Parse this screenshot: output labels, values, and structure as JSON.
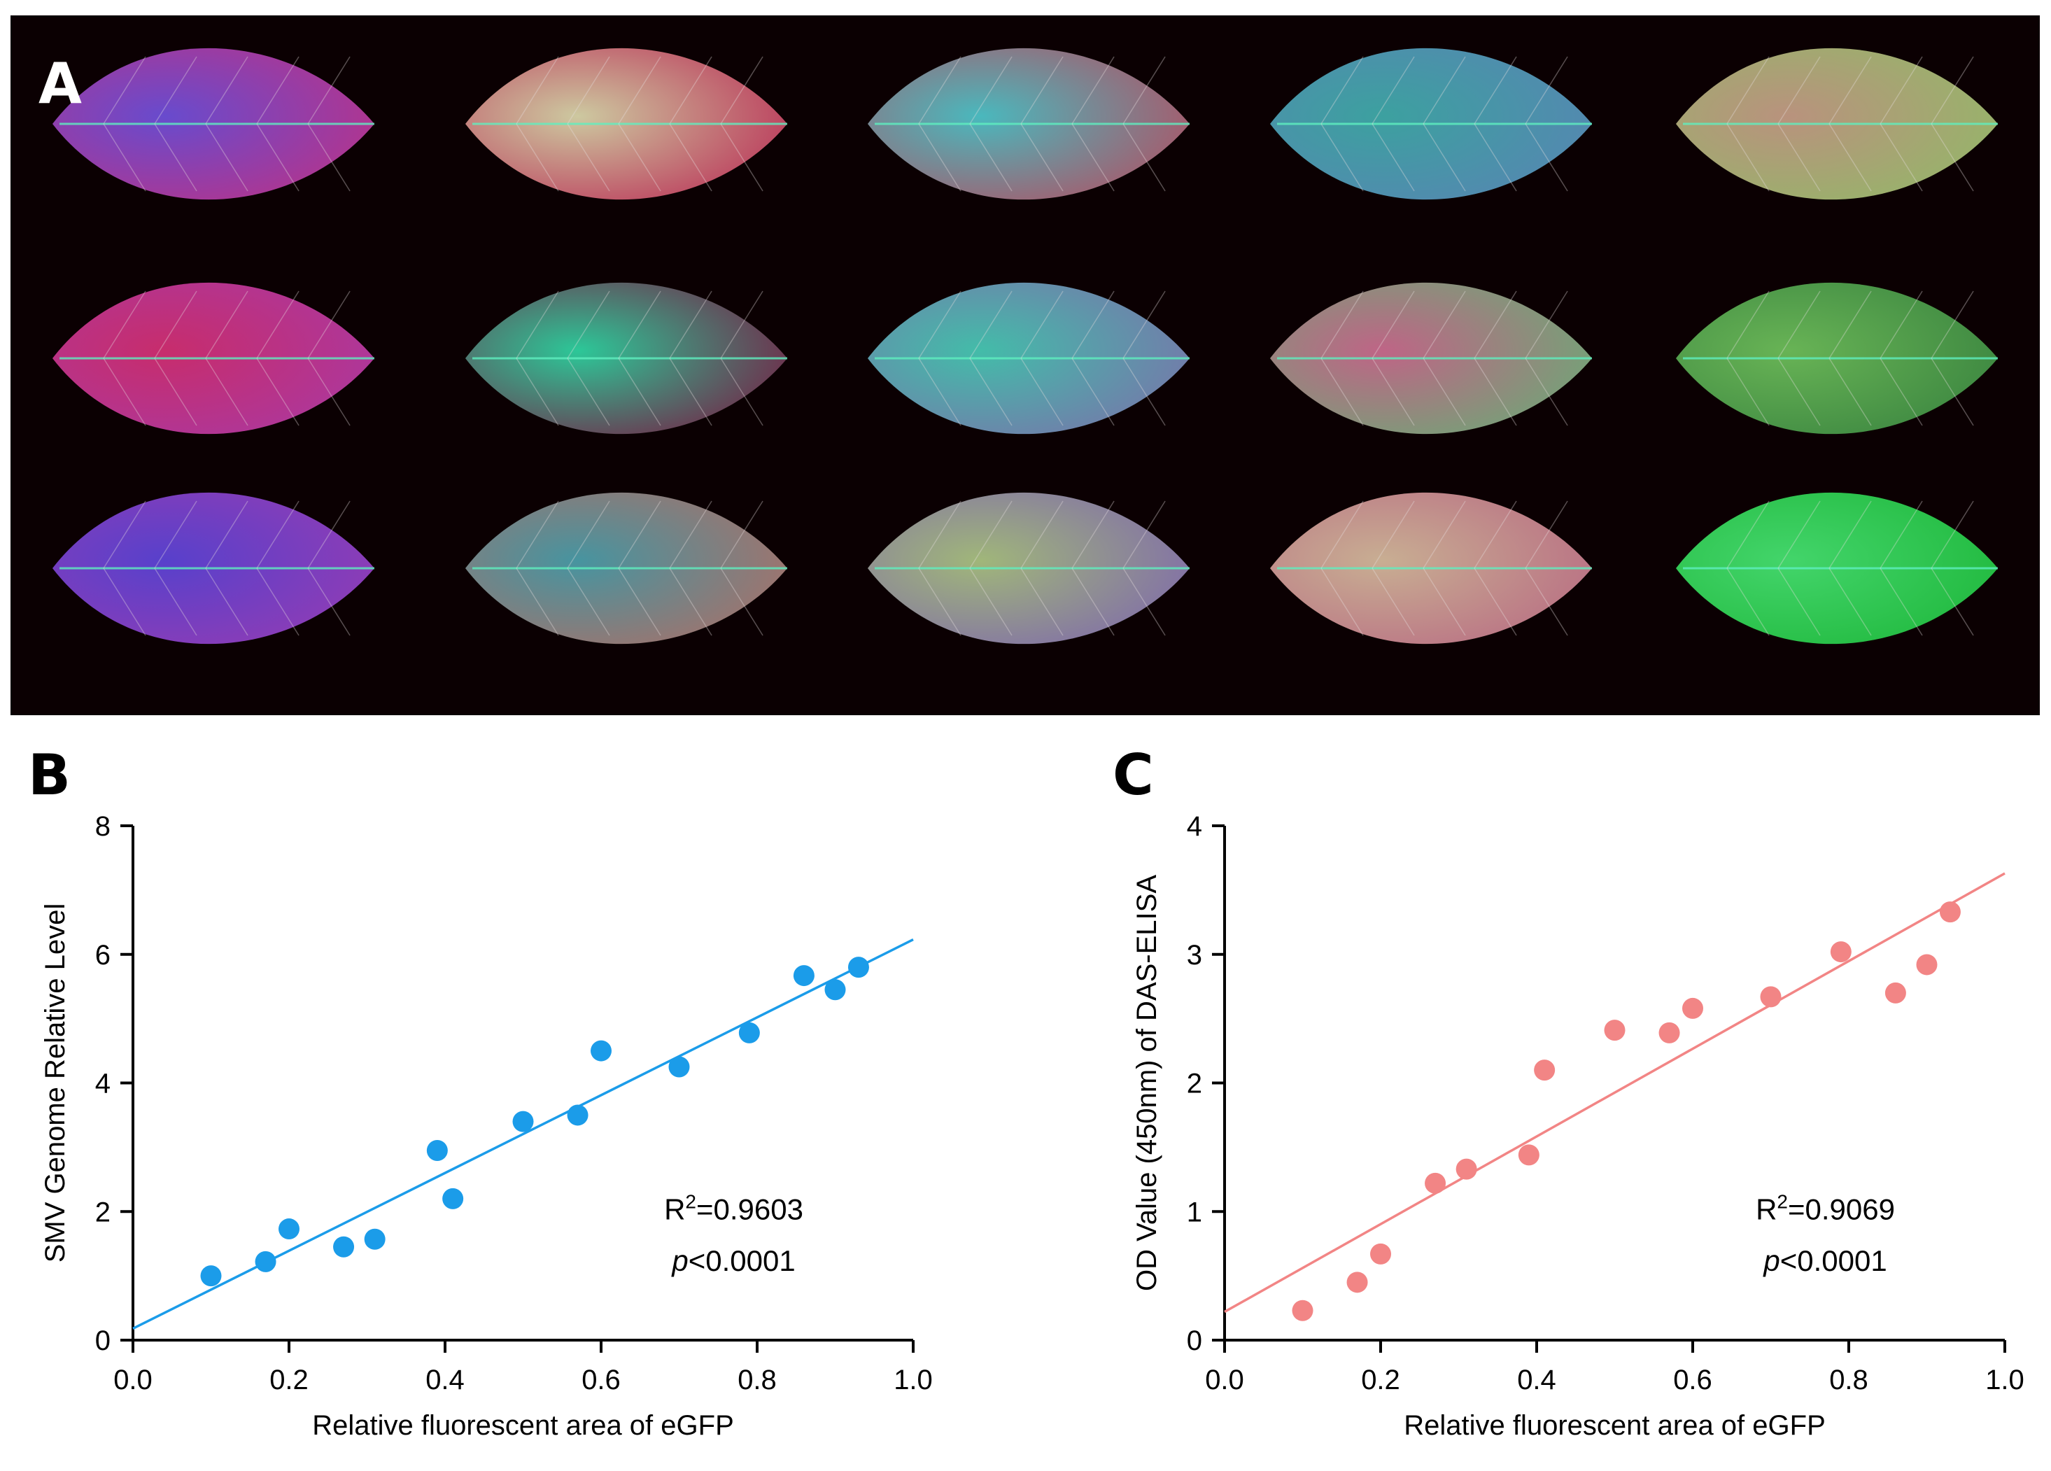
{
  "panel_labels": {
    "a": "A",
    "b": "B",
    "c": "C"
  },
  "chart_data": [
    {
      "type": "scatter",
      "panel": "B",
      "xlabel": "Relative fluorescent area of eGFP",
      "ylabel": "SMV Genome Relative Level",
      "xlim": [
        0.0,
        1.0
      ],
      "ylim": [
        0,
        8
      ],
      "x_ticks": [
        0.0,
        0.2,
        0.4,
        0.6,
        0.8,
        1.0
      ],
      "x_tick_labels": [
        "0.0",
        "0.2",
        "0.4",
        "0.6",
        "0.8",
        "1.0"
      ],
      "y_ticks": [
        0,
        2,
        4,
        6,
        8
      ],
      "y_tick_labels": [
        "0",
        "2",
        "4",
        "6",
        "8"
      ],
      "color": "#1b9ce9",
      "points": [
        {
          "x": 0.1,
          "y": 1.0
        },
        {
          "x": 0.17,
          "y": 1.22
        },
        {
          "x": 0.2,
          "y": 1.73
        },
        {
          "x": 0.27,
          "y": 1.45
        },
        {
          "x": 0.31,
          "y": 1.57
        },
        {
          "x": 0.39,
          "y": 2.95
        },
        {
          "x": 0.41,
          "y": 2.2
        },
        {
          "x": 0.5,
          "y": 3.4
        },
        {
          "x": 0.57,
          "y": 3.5
        },
        {
          "x": 0.6,
          "y": 4.5
        },
        {
          "x": 0.7,
          "y": 4.25
        },
        {
          "x": 0.79,
          "y": 4.78
        },
        {
          "x": 0.86,
          "y": 5.67
        },
        {
          "x": 0.9,
          "y": 5.45
        },
        {
          "x": 0.93,
          "y": 5.8
        }
      ],
      "fit_line": {
        "intercept": 0.18,
        "slope": 6.05
      },
      "annotation": {
        "r2_prefix": "R",
        "r2_sup": "2",
        "r2_value": "=0.9603",
        "p_italic": "p",
        "p_value": "<0.0001"
      }
    },
    {
      "type": "scatter",
      "panel": "C",
      "xlabel": "Relative fluorescent area of eGFP",
      "ylabel": "OD Value (450nm) of DAS-ELISA",
      "xlim": [
        0.0,
        1.0
      ],
      "ylim": [
        0,
        4
      ],
      "x_ticks": [
        0.0,
        0.2,
        0.4,
        0.6,
        0.8,
        1.0
      ],
      "x_tick_labels": [
        "0.0",
        "0.2",
        "0.4",
        "0.6",
        "0.8",
        "1.0"
      ],
      "y_ticks": [
        0,
        1,
        2,
        3,
        4
      ],
      "y_tick_labels": [
        "0",
        "1",
        "2",
        "3",
        "4"
      ],
      "color": "#f28585",
      "points": [
        {
          "x": 0.1,
          "y": 0.23
        },
        {
          "x": 0.17,
          "y": 0.45
        },
        {
          "x": 0.2,
          "y": 0.67
        },
        {
          "x": 0.27,
          "y": 1.22
        },
        {
          "x": 0.31,
          "y": 1.33
        },
        {
          "x": 0.39,
          "y": 1.44
        },
        {
          "x": 0.41,
          "y": 2.1
        },
        {
          "x": 0.5,
          "y": 2.41
        },
        {
          "x": 0.57,
          "y": 2.39
        },
        {
          "x": 0.6,
          "y": 2.58
        },
        {
          "x": 0.7,
          "y": 2.67
        },
        {
          "x": 0.79,
          "y": 3.02
        },
        {
          "x": 0.86,
          "y": 2.7
        },
        {
          "x": 0.9,
          "y": 2.92
        },
        {
          "x": 0.93,
          "y": 3.33
        }
      ],
      "fit_line": {
        "intercept": 0.22,
        "slope": 3.41
      },
      "annotation": {
        "r2_prefix": "R",
        "r2_sup": "2",
        "r2_value": "=0.9069",
        "p_italic": "p",
        "p_value": "<0.0001"
      }
    }
  ],
  "photo_leaves": [
    {
      "hue": "#c2358f",
      "accent": "#6d4fd8"
    },
    {
      "hue": "#c4365d",
      "accent": "#d7d3a8"
    },
    {
      "hue": "#b7566a",
      "accent": "#4dc2c7"
    },
    {
      "hue": "#5a8dbb",
      "accent": "#3fa9a8"
    },
    {
      "hue": "#9bc06e",
      "accent": "#c29a84"
    },
    {
      "hue": "#b33ba8",
      "accent": "#d12f72"
    },
    {
      "hue": "#7a2349",
      "accent": "#2ed2a0"
    },
    {
      "hue": "#7d7bb3",
      "accent": "#46c6b2"
    },
    {
      "hue": "#73b07c",
      "accent": "#c86a8d"
    },
    {
      "hue": "#3d8c43",
      "accent": "#6dbd5a"
    },
    {
      "hue": "#9a3fbd",
      "accent": "#5c44d6"
    },
    {
      "hue": "#b0766e",
      "accent": "#4a9ca8"
    },
    {
      "hue": "#8670b3",
      "accent": "#a8c080"
    },
    {
      "hue": "#c2738a",
      "accent": "#d2b79a"
    },
    {
      "hue": "#21c240",
      "accent": "#46e070"
    }
  ]
}
